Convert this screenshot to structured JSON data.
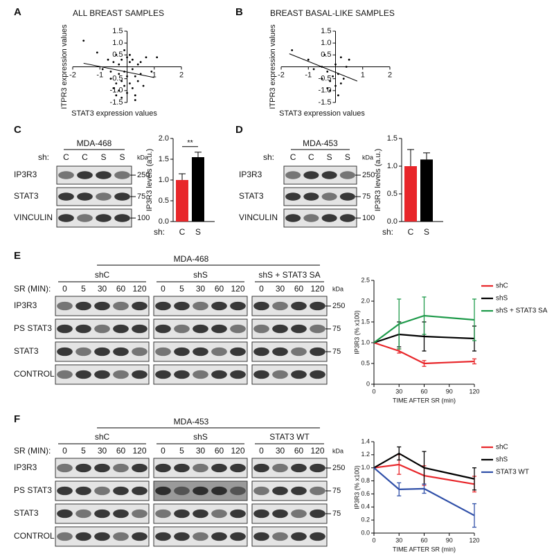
{
  "chart_data": [
    {
      "type": "scatter",
      "label": "A",
      "title": "ALL BREAST SAMPLES",
      "x_label": "STAT3 expression values",
      "y_label": "ITPR3 expression values",
      "xlim": [
        -2,
        2
      ],
      "ylim": [
        -1.5,
        1.5
      ],
      "xticks": [
        -2,
        -1,
        1,
        2
      ],
      "yticks": [
        -1.5,
        {
          "value": -1,
          "label": "-1.0"
        },
        -0.5,
        0.5,
        {
          "value": 1,
          "label": "1.0"
        },
        1.5
      ],
      "x": [
        -1.6,
        -1.1,
        -0.9,
        -0.7,
        -0.6,
        -0.5,
        -0.5,
        -0.4,
        -0.4,
        -0.3,
        -0.3,
        -0.3,
        -0.2,
        -0.2,
        -0.2,
        -0.1,
        -0.1,
        -0.1,
        0,
        0,
        0,
        0.1,
        0.1,
        0.1,
        0.2,
        0.2,
        0.2,
        0.3,
        0.3,
        0.4,
        0.4,
        0.5,
        0.5,
        0.6,
        0.7,
        0.9,
        1.1,
        -0.6,
        -0.4,
        0.3
      ],
      "values": [
        1.1,
        0.6,
        -0.1,
        0.3,
        -0.5,
        -0.9,
        0.2,
        -1.2,
        0.5,
        -0.3,
        -1.0,
        0.1,
        -0.6,
        0.3,
        -1.3,
        -0.2,
        0.7,
        -0.8,
        0.4,
        -0.4,
        -1.1,
        0.2,
        -0.7,
        0.5,
        -0.1,
        -0.9,
        0.3,
        -0.4,
        -1.2,
        0.1,
        -0.6,
        -0.3,
        0.2,
        -0.8,
        0.4,
        -0.2,
        0.4,
        -0.2,
        -0.7,
        -1.4
      ],
      "trend_line": {
        "x": [
          -1.6,
          1.0
        ],
        "y": [
          0.15,
          -0.45
        ]
      }
    },
    {
      "type": "scatter",
      "label": "B",
      "title": "BREAST BASAL-LIKE SAMPLES",
      "x_label": "STAT3 expression values",
      "y_label": "ITPR3 expression values",
      "xlim": [
        -2,
        2
      ],
      "ylim": [
        -1.5,
        1.5
      ],
      "xticks": [
        -2,
        -1,
        1,
        2
      ],
      "yticks": [
        -1.5,
        {
          "value": -1,
          "label": "-1.0"
        },
        -0.5,
        0.5,
        {
          "value": 1,
          "label": "1.0"
        },
        1.5
      ],
      "x": [
        -1.6,
        -1.0,
        -0.8,
        -0.5,
        -0.4,
        -0.3,
        -0.2,
        -0.2,
        -0.1,
        0,
        0,
        0.1,
        0.1,
        0.2,
        0.3,
        0.4,
        0.5,
        -0.5,
        -0.3,
        0.2
      ],
      "values": [
        0.7,
        0.3,
        -0.1,
        0.0,
        0.5,
        -0.2,
        -0.6,
        -1.0,
        -0.4,
        0.1,
        -0.8,
        -0.3,
        -1.2,
        0.4,
        -0.5,
        0.0,
        0.3,
        -0.5,
        -0.9,
        -0.7
      ],
      "trend_line": {
        "x": [
          -1.7,
          0.8
        ],
        "y": [
          0.55,
          -0.6
        ]
      }
    },
    {
      "type": "bar",
      "label": "C",
      "y_label": "IP3R3 levels (a.u.)",
      "category_prefix": "sh:",
      "categories": [
        "C",
        "S"
      ],
      "values": [
        1.0,
        1.55
      ],
      "errors": [
        0.15,
        0.12
      ],
      "colors": [
        "#e8262a",
        "#000000"
      ],
      "annotation": "**",
      "ylim": [
        0,
        2
      ],
      "yticks": [
        {
          "value": 0,
          "label": "0.0"
        },
        0.5,
        {
          "value": 1,
          "label": "1.0"
        },
        1.5,
        {
          "value": 2,
          "label": "2.0"
        }
      ]
    },
    {
      "type": "bar",
      "label": "D",
      "y_label": "IP3R3 levels (a.u.)",
      "category_prefix": "sh:",
      "categories": [
        "C",
        "S"
      ],
      "values": [
        1.0,
        1.12
      ],
      "errors": [
        0.3,
        0.12
      ],
      "colors": [
        "#e8262a",
        "#000000"
      ],
      "ylim": [
        0,
        1.5
      ],
      "yticks": [
        {
          "value": 0,
          "label": "0.0"
        },
        0.5,
        {
          "value": 1,
          "label": "1.0"
        },
        1.5
      ]
    },
    {
      "type": "line",
      "label": "E",
      "x_label": "TIME AFTER SR (min)",
      "y_label": "IP3R3 (% x100)",
      "x": [
        0,
        30,
        60,
        120
      ],
      "xlim": [
        0,
        120
      ],
      "xticks": [
        0,
        30,
        60,
        90,
        120
      ],
      "ylim": [
        0,
        2.5
      ],
      "yticks": [
        0,
        0.5,
        {
          "value": 1,
          "label": "1.0"
        },
        1.5,
        {
          "value": 2,
          "label": "2.0"
        },
        2.5
      ],
      "legend": "right",
      "series": [
        {
          "name": "shC",
          "color": "#e8262a",
          "values": [
            1,
            0.8,
            0.5,
            0.55
          ],
          "errors": [
            0,
            0.05,
            0.07,
            0.06
          ]
        },
        {
          "name": "shS",
          "color": "#000000",
          "values": [
            1,
            1.2,
            1.15,
            1.1
          ],
          "errors": [
            0,
            0.3,
            0.35,
            0.3
          ]
        },
        {
          "name": "shS + STAT3 SA",
          "color": "#1e9a4a",
          "values": [
            1,
            1.45,
            1.65,
            1.55
          ],
          "errors": [
            0,
            0.6,
            0.45,
            0.5
          ]
        }
      ]
    },
    {
      "type": "line",
      "label": "F",
      "x_label": "TIME AFTER SR (min)",
      "y_label": "IP3R3 (% x100)",
      "x": [
        0,
        30,
        60,
        120
      ],
      "xlim": [
        0,
        120
      ],
      "xticks": [
        0,
        30,
        60,
        90,
        120
      ],
      "ylim": [
        0,
        1.4
      ],
      "yticks": [
        {
          "value": 0,
          "label": "0.0"
        },
        0.2,
        0.4,
        0.6,
        0.8,
        {
          "value": 1,
          "label": "1.0"
        },
        1.2,
        1.4
      ],
      "legend": "right",
      "series": [
        {
          "name": "shC",
          "color": "#e8262a",
          "values": [
            1,
            1.05,
            0.88,
            0.75
          ],
          "errors": [
            0,
            0.15,
            0.15,
            0.12
          ]
        },
        {
          "name": "shS",
          "color": "#000000",
          "values": [
            1,
            1.22,
            1.0,
            0.83
          ],
          "errors": [
            0,
            0.1,
            0.25,
            0.17
          ]
        },
        {
          "name": "STAT3 WT",
          "color": "#2f4fa8",
          "values": [
            1,
            0.67,
            0.68,
            0.27
          ],
          "errors": [
            0,
            0.1,
            0.07,
            0.18
          ]
        }
      ]
    }
  ],
  "blots": [
    {
      "cell_line": "MDA-468",
      "lane_label": "sh:",
      "unit": "kDa",
      "groups": [
        {
          "lanes": [
            "C",
            "C",
            "S",
            "S"
          ]
        }
      ],
      "rows": [
        "IP3R3",
        "STAT3",
        "VINCULIN"
      ],
      "markers": [
        "250",
        "75",
        "100"
      ]
    },
    {
      "cell_line": "MDA-453",
      "lane_label": "sh:",
      "unit": "kDa",
      "groups": [
        {
          "lanes": [
            "C",
            "C",
            "S",
            "S"
          ]
        }
      ],
      "rows": [
        "IP3R3",
        "STAT3",
        "VINCULIN"
      ],
      "markers": [
        "250",
        "75",
        "100"
      ]
    },
    {
      "cell_line": "MDA-468",
      "lane_label": "SR (MIN):",
      "unit": "kDa",
      "groups": [
        {
          "name": "shC",
          "lanes": [
            "0",
            "5",
            "30",
            "60",
            "120"
          ]
        },
        {
          "name": "shS",
          "lanes": [
            "0",
            "5",
            "30",
            "60",
            "120"
          ]
        },
        {
          "name": "shS + STAT3 SA",
          "lanes": [
            "0",
            "30",
            "60",
            "120"
          ]
        }
      ],
      "rows": [
        "IP3R3",
        "PS STAT3",
        "STAT3",
        "CONTROL"
      ],
      "markers": [
        "250",
        "75",
        "75",
        null
      ]
    },
    {
      "cell_line": "MDA-453",
      "lane_label": "SR (MIN):",
      "unit": "kDa",
      "groups": [
        {
          "name": "shC",
          "lanes": [
            "0",
            "5",
            "30",
            "60",
            "120"
          ]
        },
        {
          "name": "shS",
          "lanes": [
            "0",
            "5",
            "30",
            "60",
            "120"
          ]
        },
        {
          "name": "STAT3 WT",
          "lanes": [
            "0",
            "30",
            "60",
            "120"
          ]
        }
      ],
      "rows": [
        "IP3R3",
        "PS STAT3",
        "STAT3",
        "CONTROL"
      ],
      "markers": [
        "250",
        "75",
        "75",
        null
      ]
    }
  ]
}
